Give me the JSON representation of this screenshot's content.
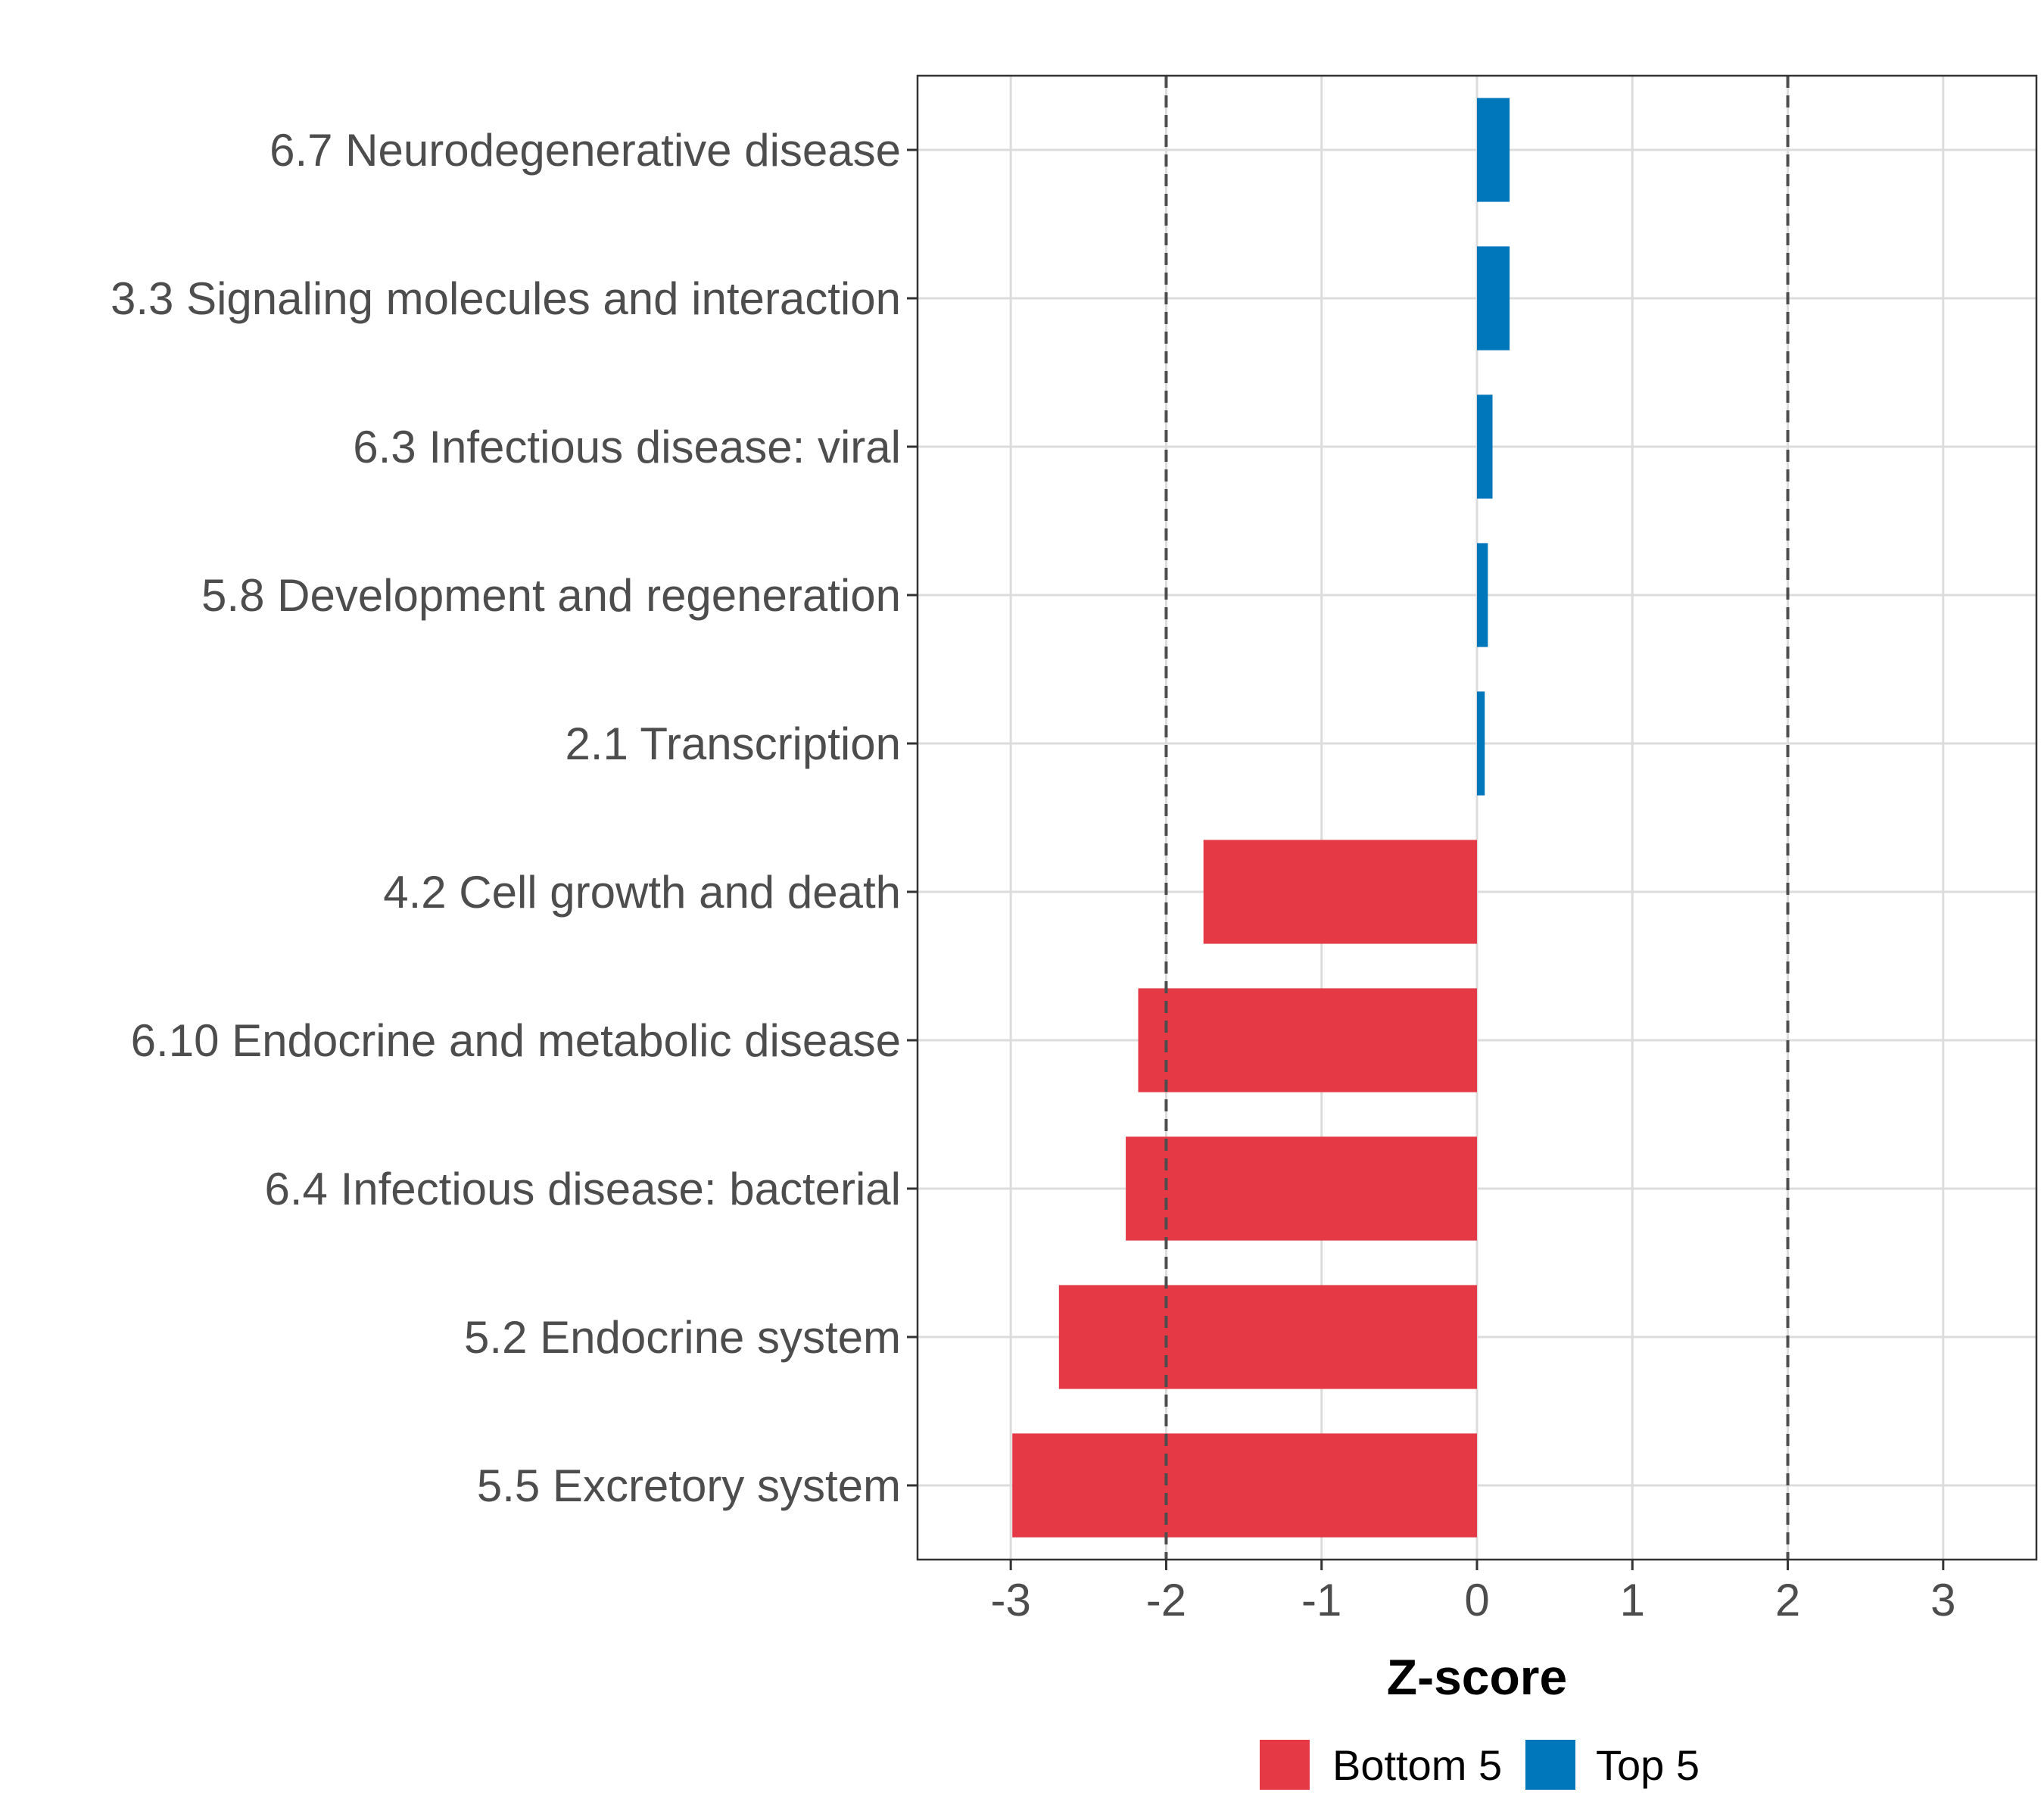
{
  "chart_data": {
    "type": "bar",
    "orientation": "horizontal",
    "xlabel": "Z-score",
    "ylabel": "",
    "xlim": [
      -3.6,
      3.6
    ],
    "x_ticks": [
      -3,
      -2,
      -1,
      0,
      1,
      2,
      3
    ],
    "x_tick_labels": [
      "-3",
      "-2",
      "-1",
      "0",
      "1",
      "2",
      "3"
    ],
    "reference_lines": [
      -2,
      2
    ],
    "grid": true,
    "legend_position": "bottom",
    "categories": [
      "6.7 Neurodegenerative disease",
      "3.3 Signaling molecules and interaction",
      "6.3 Infectious disease: viral",
      "5.8 Development and regeneration",
      "2.1 Transcription",
      "4.2 Cell growth and death",
      "6.10 Endocrine and metabolic disease",
      "6.4 Infectious disease: bacterial",
      "5.2 Endocrine system",
      "5.5 Excretory system"
    ],
    "values": [
      0.21,
      0.21,
      0.1,
      0.07,
      0.05,
      -1.76,
      -2.18,
      -2.26,
      -2.69,
      -2.99
    ],
    "groups": [
      "Top 5",
      "Top 5",
      "Top 5",
      "Top 5",
      "Top 5",
      "Bottom 5",
      "Bottom 5",
      "Bottom 5",
      "Bottom 5",
      "Bottom 5"
    ],
    "series": [
      {
        "name": "Bottom 5",
        "color": "#e63946"
      },
      {
        "name": "Top 5",
        "color": "#0077bb"
      }
    ]
  }
}
